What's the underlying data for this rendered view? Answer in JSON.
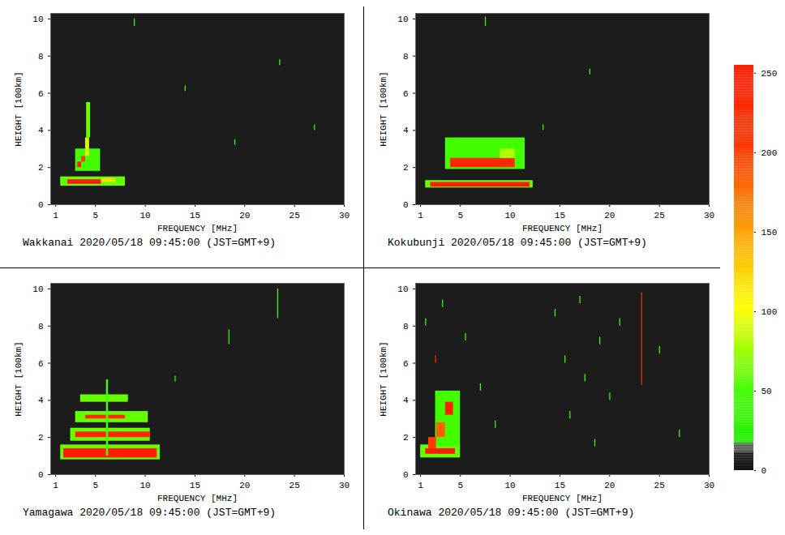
{
  "chart_data": [
    {
      "type": "heatmap",
      "title": "Wakkanai 2020/05/18 09:45:00 (JST=GMT+9)",
      "xlabel": "FREQUENCY [MHz]",
      "ylabel": "HEIGHT [100km]",
      "xlim": [
        0.5,
        30
      ],
      "xticks": [
        1,
        5,
        10,
        15,
        20,
        25,
        30
      ],
      "ylim": [
        0,
        10.3
      ],
      "yticks": [
        0,
        2,
        4,
        6,
        8,
        10
      ],
      "cells": [
        {
          "x1": 1.5,
          "x2": 8.0,
          "y1": 1.0,
          "y2": 1.5,
          "value": 60
        },
        {
          "x1": 2.2,
          "x2": 5.6,
          "y1": 1.1,
          "y2": 1.35,
          "value": 250
        },
        {
          "x1": 5.6,
          "x2": 7.0,
          "y1": 1.2,
          "y2": 1.4,
          "value": 120
        },
        {
          "x1": 3.0,
          "x2": 5.5,
          "y1": 1.8,
          "y2": 3.0,
          "value": 50
        },
        {
          "x1": 3.2,
          "x2": 3.6,
          "y1": 2.0,
          "y2": 2.3,
          "value": 240
        },
        {
          "x1": 3.6,
          "x2": 4.0,
          "y1": 2.3,
          "y2": 2.6,
          "value": 200
        },
        {
          "x1": 4.0,
          "x2": 4.4,
          "y1": 2.6,
          "y2": 3.6,
          "value": 90
        },
        {
          "x1": 4.1,
          "x2": 4.5,
          "y1": 3.6,
          "y2": 5.5,
          "value": 60
        },
        {
          "x1": 8.9,
          "x2": 9.0,
          "y1": 9.6,
          "y2": 10.0,
          "value": 50
        },
        {
          "x1": 14.0,
          "x2": 14.1,
          "y1": 6.1,
          "y2": 6.4,
          "value": 50
        },
        {
          "x1": 19.0,
          "x2": 19.1,
          "y1": 3.2,
          "y2": 3.5,
          "value": 50
        },
        {
          "x1": 23.5,
          "x2": 23.6,
          "y1": 7.5,
          "y2": 7.8,
          "value": 50
        },
        {
          "x1": 27.0,
          "x2": 27.1,
          "y1": 4.0,
          "y2": 4.3,
          "value": 50
        }
      ]
    },
    {
      "type": "heatmap",
      "title": "Kokubunji 2020/05/18 09:45:00 (JST=GMT+9)",
      "xlabel": "FREQUENCY [MHz]",
      "ylabel": "HEIGHT [100km]",
      "xlim": [
        0.5,
        30
      ],
      "xticks": [
        1,
        5,
        10,
        15,
        20,
        25,
        30
      ],
      "ylim": [
        0,
        10.3
      ],
      "yticks": [
        0,
        2,
        4,
        6,
        8,
        10
      ],
      "cells": [
        {
          "x1": 1.5,
          "x2": 12.3,
          "y1": 0.9,
          "y2": 1.3,
          "value": 60
        },
        {
          "x1": 2.0,
          "x2": 12.0,
          "y1": 0.95,
          "y2": 1.2,
          "value": 250
        },
        {
          "x1": 3.5,
          "x2": 11.5,
          "y1": 1.9,
          "y2": 3.6,
          "value": 50
        },
        {
          "x1": 4.0,
          "x2": 10.5,
          "y1": 2.0,
          "y2": 2.5,
          "value": 230
        },
        {
          "x1": 9.0,
          "x2": 10.5,
          "y1": 2.5,
          "y2": 3.0,
          "value": 80
        },
        {
          "x1": 7.5,
          "x2": 7.6,
          "y1": 9.6,
          "y2": 10.1,
          "value": 50
        },
        {
          "x1": 13.3,
          "x2": 13.4,
          "y1": 4.0,
          "y2": 4.3,
          "value": 50
        },
        {
          "x1": 18.0,
          "x2": 18.1,
          "y1": 7.0,
          "y2": 7.3,
          "value": 50
        }
      ]
    },
    {
      "type": "heatmap",
      "title": "Yamagawa 2020/05/18 09:45:00 (JST=GMT+9)",
      "xlabel": "FREQUENCY [MHz]",
      "ylabel": "HEIGHT [100km]",
      "xlim": [
        0.5,
        30
      ],
      "xticks": [
        1,
        5,
        10,
        15,
        20,
        25,
        30
      ],
      "ylim": [
        0,
        10.3
      ],
      "yticks": [
        0,
        2,
        4,
        6,
        8,
        10
      ],
      "cells": [
        {
          "x1": 1.5,
          "x2": 11.5,
          "y1": 0.8,
          "y2": 1.6,
          "value": 60
        },
        {
          "x1": 1.8,
          "x2": 11.2,
          "y1": 0.9,
          "y2": 1.4,
          "value": 250
        },
        {
          "x1": 2.5,
          "x2": 10.5,
          "y1": 1.8,
          "y2": 2.5,
          "value": 60
        },
        {
          "x1": 3.0,
          "x2": 10.5,
          "y1": 2.0,
          "y2": 2.3,
          "value": 240
        },
        {
          "x1": 3.0,
          "x2": 10.3,
          "y1": 2.8,
          "y2": 3.4,
          "value": 60
        },
        {
          "x1": 4.0,
          "x2": 8.0,
          "y1": 3.0,
          "y2": 3.2,
          "value": 220
        },
        {
          "x1": 3.5,
          "x2": 8.3,
          "y1": 3.9,
          "y2": 4.3,
          "value": 60
        },
        {
          "x1": 6.1,
          "x2": 6.3,
          "y1": 1.0,
          "y2": 5.1,
          "value": 50
        },
        {
          "x1": 18.4,
          "x2": 18.5,
          "y1": 7.0,
          "y2": 7.8,
          "value": 50
        },
        {
          "x1": 23.3,
          "x2": 23.4,
          "y1": 8.4,
          "y2": 10.0,
          "value": 50
        },
        {
          "x1": 13.0,
          "x2": 13.1,
          "y1": 5.0,
          "y2": 5.3,
          "value": 50
        }
      ]
    },
    {
      "type": "heatmap",
      "title": "Okinawa 2020/05/18 09:45:00 (JST=GMT+9)",
      "xlabel": "FREQUENCY [MHz]",
      "ylabel": "HEIGHT [100km]",
      "xlim": [
        0.5,
        30
      ],
      "xticks": [
        1,
        5,
        10,
        15,
        20,
        25,
        30
      ],
      "ylim": [
        0,
        10.3
      ],
      "yticks": [
        0,
        2,
        4,
        6,
        8,
        10
      ],
      "cells": [
        {
          "x1": 1.0,
          "x2": 5.0,
          "y1": 0.9,
          "y2": 1.6,
          "value": 60
        },
        {
          "x1": 1.5,
          "x2": 4.5,
          "y1": 1.1,
          "y2": 1.4,
          "value": 250
        },
        {
          "x1": 2.5,
          "x2": 5.0,
          "y1": 1.5,
          "y2": 4.5,
          "value": 50
        },
        {
          "x1": 1.8,
          "x2": 2.6,
          "y1": 1.4,
          "y2": 2.0,
          "value": 200
        },
        {
          "x1": 2.6,
          "x2": 3.5,
          "y1": 2.0,
          "y2": 2.8,
          "value": 180
        },
        {
          "x1": 3.5,
          "x2": 4.3,
          "y1": 3.2,
          "y2": 3.9,
          "value": 240
        },
        {
          "x1": 1.5,
          "x2": 1.6,
          "y1": 8.0,
          "y2": 8.4,
          "value": 50
        },
        {
          "x1": 2.5,
          "x2": 2.6,
          "y1": 6.0,
          "y2": 6.4,
          "value": 220
        },
        {
          "x1": 3.2,
          "x2": 3.3,
          "y1": 9.0,
          "y2": 9.4,
          "value": 50
        },
        {
          "x1": 5.5,
          "x2": 5.6,
          "y1": 7.2,
          "y2": 7.6,
          "value": 50
        },
        {
          "x1": 7.0,
          "x2": 7.1,
          "y1": 4.5,
          "y2": 4.9,
          "value": 50
        },
        {
          "x1": 8.5,
          "x2": 8.6,
          "y1": 2.5,
          "y2": 2.9,
          "value": 50
        },
        {
          "x1": 14.5,
          "x2": 14.6,
          "y1": 8.5,
          "y2": 8.9,
          "value": 50
        },
        {
          "x1": 15.5,
          "x2": 15.6,
          "y1": 6.0,
          "y2": 6.4,
          "value": 50
        },
        {
          "x1": 16.0,
          "x2": 16.1,
          "y1": 3.0,
          "y2": 3.4,
          "value": 50
        },
        {
          "x1": 17.0,
          "x2": 17.1,
          "y1": 9.2,
          "y2": 9.6,
          "value": 50
        },
        {
          "x1": 17.5,
          "x2": 17.6,
          "y1": 5.0,
          "y2": 5.4,
          "value": 50
        },
        {
          "x1": 18.5,
          "x2": 18.6,
          "y1": 1.5,
          "y2": 1.9,
          "value": 50
        },
        {
          "x1": 19.0,
          "x2": 19.1,
          "y1": 7.0,
          "y2": 7.4,
          "value": 50
        },
        {
          "x1": 20.0,
          "x2": 20.1,
          "y1": 4.0,
          "y2": 4.4,
          "value": 50
        },
        {
          "x1": 21.0,
          "x2": 21.1,
          "y1": 8.0,
          "y2": 8.4,
          "value": 50
        },
        {
          "x1": 23.2,
          "x2": 23.3,
          "y1": 4.8,
          "y2": 9.8,
          "value": 220
        },
        {
          "x1": 25.0,
          "x2": 25.1,
          "y1": 6.5,
          "y2": 6.9,
          "value": 50
        },
        {
          "x1": 27.0,
          "x2": 27.1,
          "y1": 2.0,
          "y2": 2.4,
          "value": 50
        }
      ]
    }
  ],
  "colorbar": {
    "range": [
      0,
      255
    ],
    "ticks": [
      0,
      50,
      100,
      150,
      200,
      250
    ]
  }
}
